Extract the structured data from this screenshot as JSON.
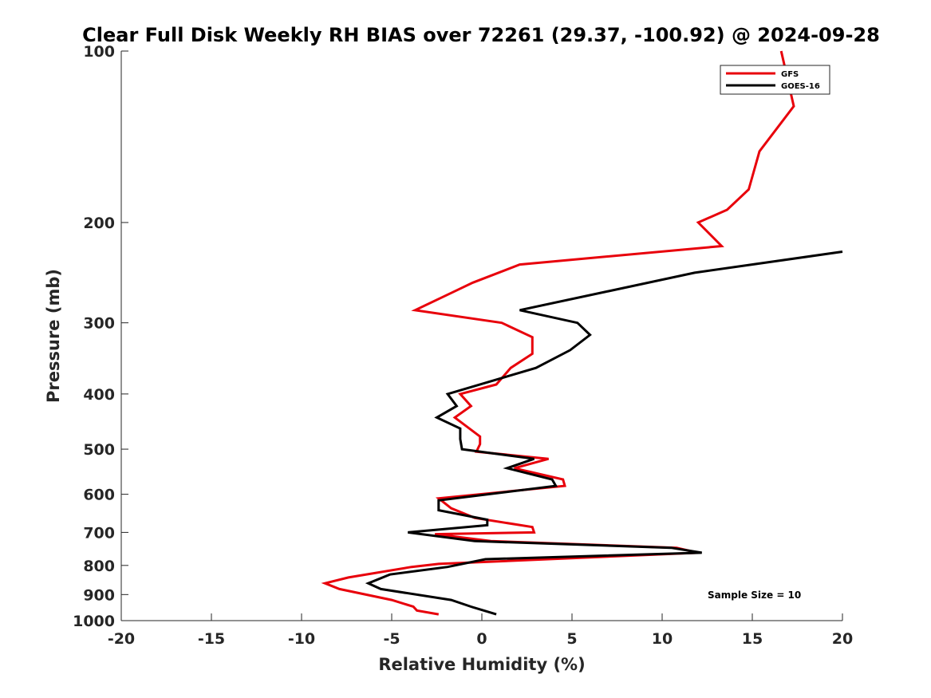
{
  "chart_data": {
    "type": "line",
    "title": "Clear Full Disk Weekly RH BIAS over 72261 (29.37, -100.92) @ 2024-09-28",
    "xlabel": "Relative Humidity (%)",
    "ylabel": "Pressure (mb)",
    "xlim": [
      -20,
      20
    ],
    "ylim": [
      100,
      1000
    ],
    "y_scale": "log",
    "y_reversed": true,
    "grid": false,
    "legend_position": "top-right",
    "x_ticks": [
      -20,
      -15,
      -10,
      -5,
      0,
      5,
      10,
      15,
      20
    ],
    "x_tick_labels": [
      "-20",
      "-15",
      "-10",
      "-5",
      "0",
      "5",
      "10",
      "15",
      "20"
    ],
    "y_ticks": [
      100,
      200,
      300,
      400,
      500,
      600,
      700,
      800,
      900,
      1000
    ],
    "y_tick_labels": [
      "100",
      "200",
      "300",
      "400",
      "500",
      "600",
      "700",
      "800",
      "900",
      "1000"
    ],
    "annotation": "Sample Size = 10",
    "series": [
      {
        "name": "GFS",
        "color": "#e8000b",
        "points": [
          [
            16.6,
            100
          ],
          [
            17.3,
            125
          ],
          [
            15.4,
            150
          ],
          [
            14.8,
            175
          ],
          [
            13.6,
            190
          ],
          [
            12.0,
            200
          ],
          [
            13.3,
            220
          ],
          [
            2.1,
            237
          ],
          [
            -0.5,
            255
          ],
          [
            -1.6,
            265
          ],
          [
            -3.7,
            285
          ],
          [
            1.1,
            300
          ],
          [
            2.8,
            318
          ],
          [
            2.8,
            340
          ],
          [
            1.6,
            360
          ],
          [
            0.8,
            385
          ],
          [
            -1.2,
            400
          ],
          [
            -0.6,
            420
          ],
          [
            -1.5,
            440
          ],
          [
            -0.1,
            475
          ],
          [
            -0.1,
            490
          ],
          [
            -0.3,
            505
          ],
          [
            3.7,
            520
          ],
          [
            1.8,
            540
          ],
          [
            4.5,
            565
          ],
          [
            4.6,
            580
          ],
          [
            -2.4,
            610
          ],
          [
            -1.7,
            635
          ],
          [
            -0.4,
            660
          ],
          [
            2.8,
            685
          ],
          [
            2.9,
            700
          ],
          [
            -2.6,
            705
          ],
          [
            0.5,
            725
          ],
          [
            10.8,
            745
          ],
          [
            12.0,
            760
          ],
          [
            -2.4,
            795
          ],
          [
            -3.9,
            805
          ],
          [
            -7.4,
            840
          ],
          [
            -8.7,
            860
          ],
          [
            -7.9,
            880
          ],
          [
            -5.0,
            920
          ],
          [
            -3.8,
            945
          ],
          [
            -3.6,
            960
          ],
          [
            -2.4,
            975
          ]
        ]
      },
      {
        "name": "GOES-16",
        "color": "#000000",
        "points": [
          [
            20.0,
            225
          ],
          [
            11.8,
            245
          ],
          [
            2.1,
            285
          ],
          [
            5.3,
            300
          ],
          [
            6.0,
            315
          ],
          [
            4.9,
            335
          ],
          [
            3.0,
            360
          ],
          [
            -1.9,
            400
          ],
          [
            -1.4,
            420
          ],
          [
            -2.5,
            440
          ],
          [
            -1.2,
            460
          ],
          [
            -1.2,
            480
          ],
          [
            -1.1,
            500
          ],
          [
            2.9,
            520
          ],
          [
            1.4,
            540
          ],
          [
            3.9,
            565
          ],
          [
            4.1,
            580
          ],
          [
            -2.4,
            615
          ],
          [
            -2.4,
            640
          ],
          [
            0.3,
            665
          ],
          [
            0.3,
            680
          ],
          [
            -4.1,
            700
          ],
          [
            -0.4,
            725
          ],
          [
            10.5,
            745
          ],
          [
            12.2,
            760
          ],
          [
            0.2,
            780
          ],
          [
            -1.9,
            805
          ],
          [
            -5.1,
            830
          ],
          [
            -6.3,
            860
          ],
          [
            -5.6,
            880
          ],
          [
            -1.7,
            920
          ],
          [
            -0.6,
            945
          ],
          [
            0.8,
            975
          ]
        ]
      }
    ]
  }
}
